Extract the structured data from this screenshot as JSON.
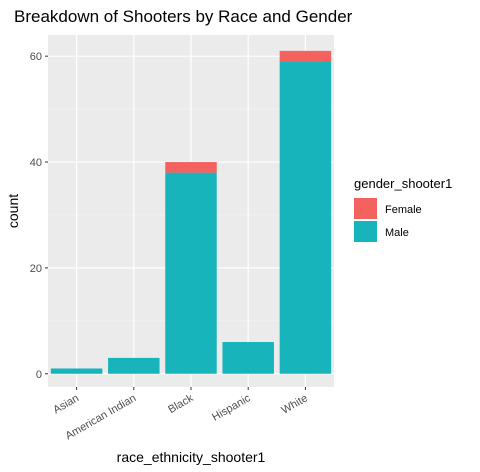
{
  "chart_data": {
    "type": "bar",
    "stacked": true,
    "title": "Breakdown of Shooters by Race and Gender",
    "xlabel": "race_ethnicity_shooter1",
    "ylabel": "count",
    "categories": [
      "Asian",
      "American Indian",
      "Black",
      "Hispanic",
      "White"
    ],
    "series": [
      {
        "name": "Male",
        "color": "#17b4bb",
        "values": [
          1,
          3,
          38,
          6,
          59
        ]
      },
      {
        "name": "Female",
        "color": "#f4625f",
        "values": [
          0,
          0,
          2,
          0,
          2
        ]
      }
    ],
    "ylim": [
      -2.5,
      64
    ],
    "yticks": [
      0,
      20,
      40,
      60
    ],
    "grid": true,
    "legend": {
      "title": "gender_shooter1",
      "placement": "right",
      "items": [
        {
          "label": "Female",
          "color": "#f4625f"
        },
        {
          "label": "Male",
          "color": "#17b4bb"
        }
      ]
    }
  }
}
